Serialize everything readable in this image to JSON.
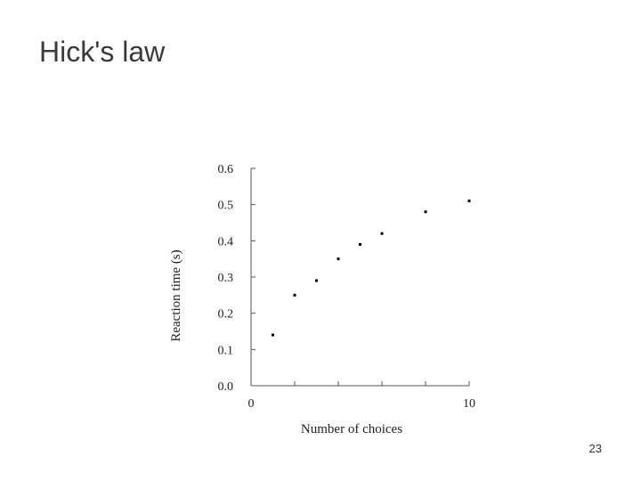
{
  "slide": {
    "title": "Hick's law",
    "page_number": "23"
  },
  "chart_data": {
    "type": "scatter",
    "title": "",
    "xlabel": "Number of choices",
    "ylabel": "Reaction time (s)",
    "xlim": [
      0,
      10
    ],
    "ylim": [
      0.0,
      0.6
    ],
    "x_ticks": [
      0,
      2,
      4,
      6,
      8,
      10
    ],
    "x_tick_labels": [
      "0",
      "",
      "",
      "",
      "",
      "10"
    ],
    "y_ticks": [
      0.0,
      0.1,
      0.2,
      0.3,
      0.4,
      0.5,
      0.6
    ],
    "y_tick_labels": [
      "0.0",
      "0.1",
      "0.2",
      "0.3",
      "0.4",
      "0.5",
      "0.6"
    ],
    "grid": false,
    "points": [
      {
        "x": 1,
        "y": 0.14
      },
      {
        "x": 2,
        "y": 0.25
      },
      {
        "x": 3,
        "y": 0.29
      },
      {
        "x": 4,
        "y": 0.35
      },
      {
        "x": 5,
        "y": 0.39
      },
      {
        "x": 6,
        "y": 0.42
      },
      {
        "x": 8,
        "y": 0.48
      },
      {
        "x": 10,
        "y": 0.51
      }
    ],
    "marker_color": "#000000",
    "axis_color": "#555555"
  }
}
